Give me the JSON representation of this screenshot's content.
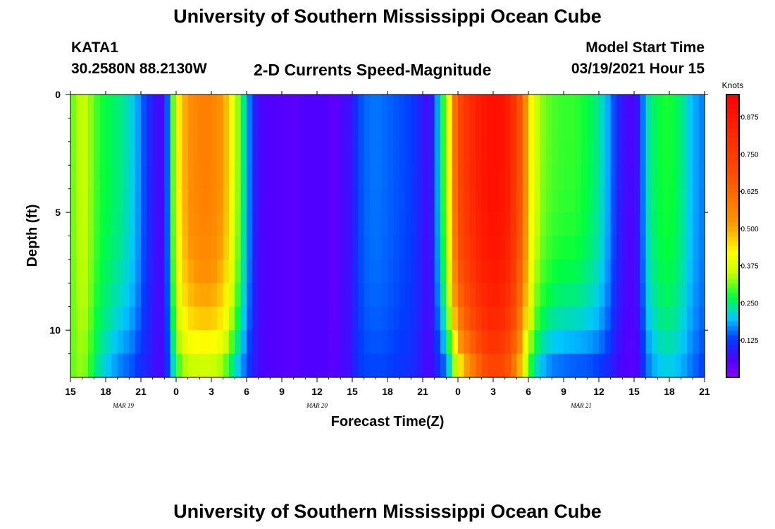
{
  "header": {
    "title": "University of Southern Mississippi Ocean Cube",
    "station_id": "KATA1",
    "coordinates": "30.2580N 88.2130W",
    "plot_title": "2-D Currents Speed-Magnitude",
    "model_start_label": "Model Start Time",
    "model_start_value": "03/19/2021 Hour 15"
  },
  "footer": {
    "title": "University of Southern Mississippi Ocean Cube"
  },
  "chart_data": {
    "type": "heatmap",
    "title": "2-D Currents Speed-Magnitude",
    "xlabel": "Forecast Time(Z)",
    "ylabel": "Depth (ft)",
    "x_unit": "hours from 03/19/2021 15Z",
    "x_range": [
      0,
      54
    ],
    "y_range": [
      0,
      12
    ],
    "y_inverted": true,
    "x_tick_labels": [
      "15",
      "18",
      "21",
      "0",
      "3",
      "6",
      "9",
      "12",
      "15",
      "18",
      "21",
      "0",
      "3",
      "6",
      "9",
      "12",
      "15",
      "18",
      "21"
    ],
    "date_labels": [
      {
        "text": "MAR 19",
        "hour": 4.5
      },
      {
        "text": "MAR 20",
        "hour": 21
      },
      {
        "text": "MAR 21",
        "hour": 43.5
      }
    ],
    "y_tick_labels": [
      "0",
      "5",
      "10"
    ],
    "y_tick_values": [
      0,
      5,
      10
    ],
    "colorbar": {
      "label": "Knots",
      "min": 0.0,
      "max": 0.95,
      "tick_labels": [
        "0.125",
        "0.250",
        "0.375",
        "0.500",
        "0.625",
        "0.750",
        "0.875"
      ],
      "tick_values": [
        0.125,
        0.25,
        0.375,
        0.5,
        0.625,
        0.75,
        0.875
      ]
    },
    "depth_levels_ft": [
      0.5,
      1.5,
      2.5,
      3.5,
      4.5,
      5.5,
      6.5,
      7.5,
      8.5,
      9.5,
      10.5,
      11.5
    ],
    "profiles": [
      [
        0.0,
        0.3,
        0.3
      ],
      [
        0.5,
        0.33,
        0.32
      ],
      [
        1.0,
        0.36,
        0.33
      ],
      [
        1.5,
        0.34,
        0.3
      ],
      [
        2.0,
        0.31,
        0.25
      ],
      [
        2.5,
        0.28,
        0.22
      ],
      [
        3.0,
        0.27,
        0.2
      ],
      [
        3.5,
        0.26,
        0.18
      ],
      [
        4.0,
        0.25,
        0.16
      ],
      [
        4.5,
        0.24,
        0.14
      ],
      [
        5.0,
        0.22,
        0.14
      ],
      [
        5.5,
        0.2,
        0.12
      ],
      [
        6.0,
        0.16,
        0.1
      ],
      [
        6.5,
        0.12,
        0.1
      ],
      [
        7.0,
        0.09,
        0.08
      ],
      [
        7.5,
        0.07,
        0.07
      ],
      [
        8.0,
        0.07,
        0.07
      ],
      [
        8.5,
        0.22,
        0.16
      ],
      [
        9.0,
        0.4,
        0.25
      ],
      [
        9.5,
        0.47,
        0.3
      ],
      [
        10.0,
        0.53,
        0.32
      ],
      [
        11.0,
        0.57,
        0.32
      ],
      [
        12.0,
        0.57,
        0.32
      ],
      [
        13.0,
        0.52,
        0.3
      ],
      [
        13.5,
        0.45,
        0.25
      ],
      [
        14.0,
        0.37,
        0.2
      ],
      [
        14.5,
        0.29,
        0.17
      ],
      [
        15.0,
        0.2,
        0.13
      ],
      [
        15.5,
        0.12,
        0.1
      ],
      [
        16.0,
        0.07,
        0.07
      ],
      [
        17.0,
        0.06,
        0.06
      ],
      [
        19.0,
        0.05,
        0.05
      ],
      [
        20.0,
        0.06,
        0.06
      ],
      [
        22.0,
        0.06,
        0.06
      ],
      [
        22.5,
        0.03,
        0.04
      ],
      [
        23.0,
        0.07,
        0.07
      ],
      [
        23.5,
        0.07,
        0.07
      ],
      [
        24.0,
        0.08,
        0.08
      ],
      [
        24.5,
        0.13,
        0.12
      ],
      [
        25.0,
        0.15,
        0.13
      ],
      [
        26.0,
        0.16,
        0.13
      ],
      [
        27.0,
        0.15,
        0.13
      ],
      [
        28.0,
        0.14,
        0.12
      ],
      [
        29.0,
        0.13,
        0.11
      ],
      [
        29.5,
        0.11,
        0.1
      ],
      [
        30.0,
        0.09,
        0.08
      ],
      [
        30.5,
        0.06,
        0.06
      ],
      [
        31.0,
        0.12,
        0.08
      ],
      [
        31.5,
        0.24,
        0.1
      ],
      [
        32.0,
        0.33,
        0.14
      ],
      [
        32.5,
        0.52,
        0.22
      ],
      [
        33.0,
        0.7,
        0.36
      ],
      [
        34.0,
        0.8,
        0.5
      ],
      [
        35.0,
        0.87,
        0.63
      ],
      [
        35.5,
        0.89,
        0.68
      ],
      [
        36.0,
        0.9,
        0.7
      ],
      [
        37.0,
        0.88,
        0.67
      ],
      [
        37.5,
        0.82,
        0.6
      ],
      [
        38.0,
        0.74,
        0.52
      ],
      [
        38.5,
        0.62,
        0.4
      ],
      [
        39.0,
        0.47,
        0.28
      ],
      [
        39.5,
        0.38,
        0.22
      ],
      [
        40.0,
        0.33,
        0.18
      ],
      [
        41.0,
        0.3,
        0.14
      ],
      [
        42.0,
        0.29,
        0.13
      ],
      [
        43.0,
        0.29,
        0.12
      ],
      [
        44.0,
        0.27,
        0.12
      ],
      [
        45.0,
        0.24,
        0.11
      ],
      [
        46.0,
        0.17,
        0.09
      ],
      [
        46.5,
        0.11,
        0.07
      ],
      [
        47.0,
        0.08,
        0.06
      ],
      [
        48.0,
        0.06,
        0.05
      ],
      [
        48.5,
        0.1,
        0.07
      ],
      [
        49.0,
        0.22,
        0.14
      ],
      [
        50.0,
        0.27,
        0.19
      ],
      [
        51.0,
        0.28,
        0.2
      ],
      [
        52.0,
        0.25,
        0.18
      ],
      [
        53.0,
        0.19,
        0.15
      ],
      [
        54.0,
        0.16,
        0.12
      ]
    ]
  }
}
